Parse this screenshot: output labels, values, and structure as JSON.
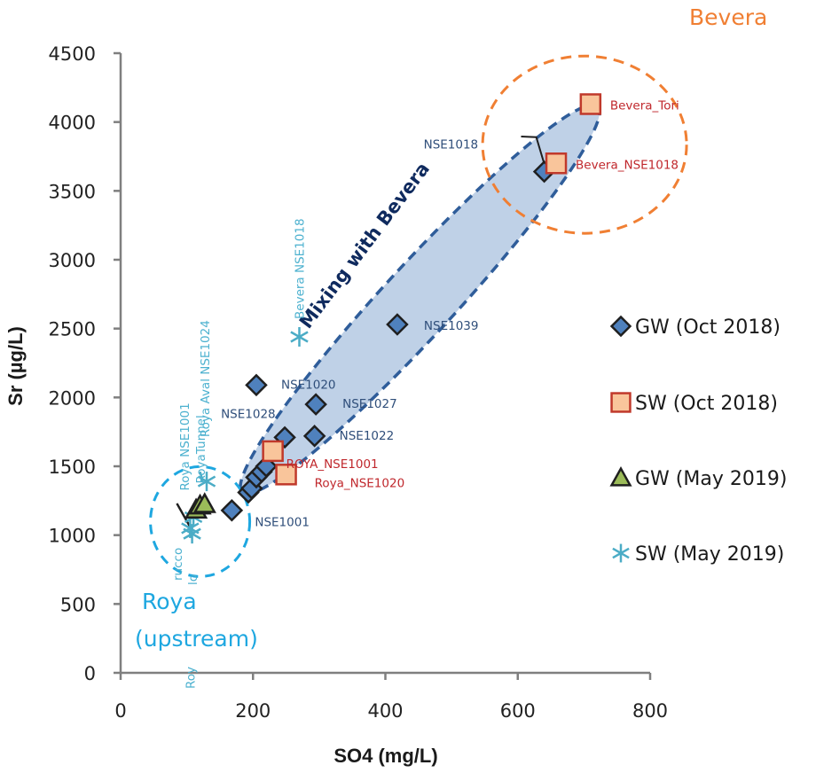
{
  "chart_data": {
    "type": "scatter",
    "title": "",
    "xlabel": "SO4 (mg/L)",
    "ylabel": "Sr (µg/L)",
    "xlim": [
      0,
      800
    ],
    "ylim": [
      0,
      4500
    ],
    "x_ticks": [
      0,
      200,
      400,
      600,
      800
    ],
    "y_ticks": [
      0,
      500,
      1000,
      1500,
      2000,
      2500,
      3000,
      3500,
      4000,
      4500
    ],
    "grid": false,
    "legend_position": "right",
    "series": [
      {
        "name": "GW (Oct  2018)",
        "marker": "diamond",
        "fill": "#4f81bd",
        "stroke": "#1f1f1f",
        "points": [
          {
            "x": 168,
            "y": 1180,
            "label": "NSE1001"
          },
          {
            "x": 193,
            "y": 1310,
            "label": ""
          },
          {
            "x": 198,
            "y": 1340,
            "label": ""
          },
          {
            "x": 205,
            "y": 1420,
            "label": ""
          },
          {
            "x": 213,
            "y": 1460,
            "label": ""
          },
          {
            "x": 220,
            "y": 1500,
            "label": ""
          },
          {
            "x": 248,
            "y": 1710,
            "label": "NSE1028"
          },
          {
            "x": 205,
            "y": 2090,
            "label": "NSE1020"
          },
          {
            "x": 295,
            "y": 1950,
            "label": "NSE1027"
          },
          {
            "x": 293,
            "y": 1720,
            "label": "NSE1022"
          },
          {
            "x": 418,
            "y": 2530,
            "label": "NSE1039"
          },
          {
            "x": 640,
            "y": 3640,
            "label": "NSE1018"
          }
        ]
      },
      {
        "name": "SW (Oct  2018)",
        "marker": "square",
        "fill": "#f9c59b",
        "stroke": "#c0392b",
        "points": [
          {
            "x": 230,
            "y": 1610,
            "label": "ROYA_NSE1001"
          },
          {
            "x": 250,
            "y": 1440,
            "label": "Roya_NSE1020"
          },
          {
            "x": 658,
            "y": 3700,
            "label": "Bevera_NSE1018"
          },
          {
            "x": 710,
            "y": 4130,
            "label": "Bevera_Tori"
          }
        ]
      },
      {
        "name": "GW (May 2019)",
        "marker": "triangle",
        "fill": "#9bbb59",
        "stroke": "#1f1f1f",
        "points": [
          {
            "x": 114,
            "y": 1185,
            "label": ""
          },
          {
            "x": 120,
            "y": 1215,
            "label": ""
          },
          {
            "x": 127,
            "y": 1225,
            "label": ""
          }
        ]
      },
      {
        "name": "SW (May 2019)",
        "marker": "asterisk",
        "fill": "#4bacc6",
        "stroke": "#4bacc6",
        "points": [
          {
            "x": 130,
            "y": 1390,
            "label": "Roya  Aval NSE1024"
          },
          {
            "x": 270,
            "y": 2440,
            "label": "Bevera NSE1018"
          },
          {
            "x": 110,
            "y": 1130,
            "label": "Roya  NSE1001"
          },
          {
            "x": 105,
            "y": 1050,
            "label": "RoyaTunnel"
          },
          {
            "x": 108,
            "y": 1010,
            "label": "Roy"
          }
        ]
      }
    ],
    "annotations": [
      {
        "text": "Bevera",
        "kind": "group-label",
        "color": "#f07f33"
      },
      {
        "text": "Roya",
        "kind": "group-label",
        "color": "#1ea7e0"
      },
      {
        "text": "(upstream)",
        "kind": "group-label",
        "color": "#1ea7e0"
      },
      {
        "text": "Mixing with Bevera",
        "kind": "trend-label",
        "color": "#0f2a5e"
      },
      {
        "text": "rucco",
        "kind": "clipped-label",
        "color": "#4bacc6"
      },
      {
        "text": "lo",
        "kind": "clipped-label",
        "color": "#4bacc6"
      }
    ],
    "regions": [
      {
        "name": "bevera-circle",
        "center": {
          "x": 705,
          "y": 3900
        },
        "style": "dashed",
        "color": "#f07f33"
      },
      {
        "name": "roya-circle",
        "center": {
          "x": 112,
          "y": 1150
        },
        "style": "dashed",
        "color": "#1ea7e0"
      },
      {
        "name": "mixing-ellipse",
        "from": {
          "x": 230,
          "y": 1500
        },
        "to": {
          "x": 680,
          "y": 3850
        },
        "style": "dashed-filled",
        "color": "#2f5d9a",
        "fill": "#b8cce4"
      }
    ]
  }
}
